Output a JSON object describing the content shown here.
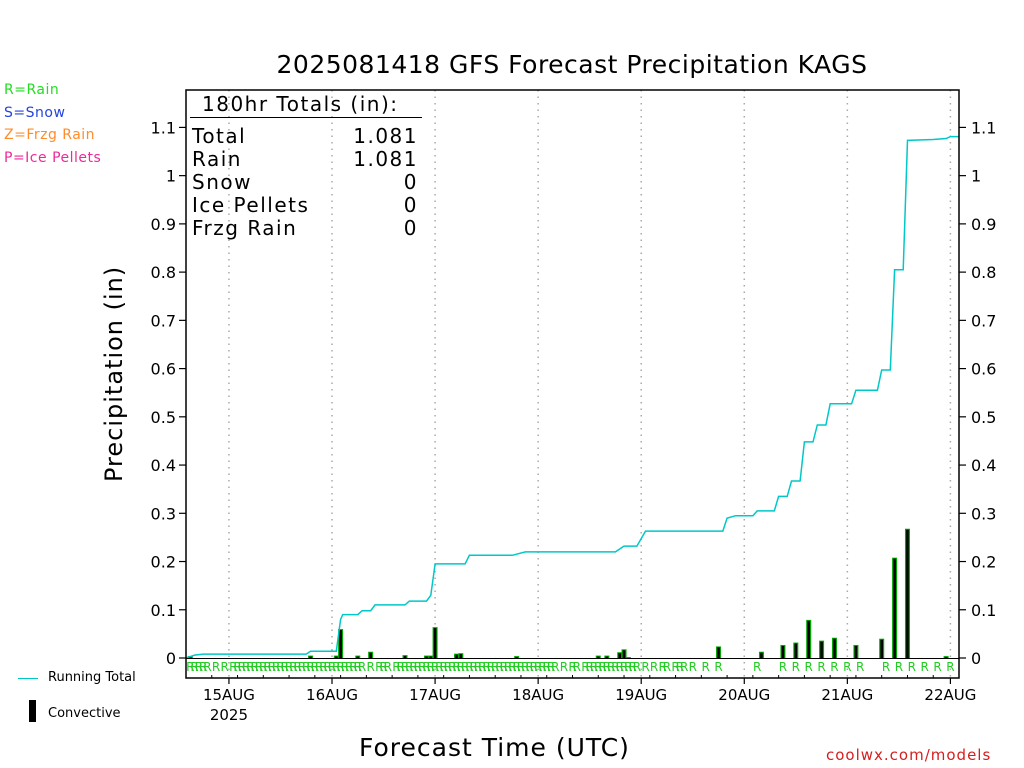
{
  "chart_data": {
    "type": "line",
    "title": "2025081418 GFS Forecast Precipitation KAGS",
    "xlabel": "Forecast Time (UTC)",
    "ylabel": "Precipitation (in)",
    "ylim": [
      0,
      1.19
    ],
    "yticks": [
      0,
      0.1,
      0.2,
      0.3,
      0.4,
      0.5,
      0.6,
      0.7,
      0.8,
      0.9,
      1,
      1.1
    ],
    "ytick_labels": [
      "0",
      "0.1",
      "0.2",
      "0.3",
      "0.4",
      "0.5",
      "0.6",
      "0.7",
      "0.8",
      "0.9",
      "1",
      "1.1"
    ],
    "xlim_hours": [
      -4,
      176
    ],
    "xticks": [
      {
        "hour": 6,
        "label": "15AUG",
        "sub": "2025"
      },
      {
        "hour": 30,
        "label": "16AUG"
      },
      {
        "hour": 54,
        "label": "17AUG"
      },
      {
        "hour": 78,
        "label": "18AUG"
      },
      {
        "hour": 102,
        "label": "19AUG"
      },
      {
        "hour": 126,
        "label": "20AUG"
      },
      {
        "hour": 150,
        "label": "21AUG"
      },
      {
        "hour": 174,
        "label": "22AUG"
      }
    ],
    "grid": "vertical dotted at 00Z",
    "legend": "left margin",
    "totals": {
      "heading": "180hr Totals (in):",
      "rows": [
        {
          "label": "Total",
          "value": "1.081"
        },
        {
          "label": "Rain",
          "value": "1.081"
        },
        {
          "label": "Snow",
          "value": "0"
        },
        {
          "label": "Ice Pellets",
          "value": "0"
        },
        {
          "label": "Frzg Rain",
          "value": "0"
        }
      ]
    },
    "series": [
      {
        "name": "Running Total",
        "color": "#00c8c8",
        "points": [
          [
            -4,
            0.0
          ],
          [
            -3,
            0.003
          ],
          [
            -2,
            0.006
          ],
          [
            0,
            0.008
          ],
          [
            24,
            0.008
          ],
          [
            25,
            0.014
          ],
          [
            31,
            0.014
          ],
          [
            32,
            0.08
          ],
          [
            32.5,
            0.09
          ],
          [
            36,
            0.09
          ],
          [
            37,
            0.098
          ],
          [
            39,
            0.098
          ],
          [
            40,
            0.11
          ],
          [
            47,
            0.11
          ],
          [
            48,
            0.118
          ],
          [
            52,
            0.118
          ],
          [
            53,
            0.13
          ],
          [
            54,
            0.195
          ],
          [
            61,
            0.195
          ],
          [
            62,
            0.213
          ],
          [
            72,
            0.213
          ],
          [
            75,
            0.22
          ],
          [
            96,
            0.22
          ],
          [
            98,
            0.232
          ],
          [
            101,
            0.232
          ],
          [
            103,
            0.263
          ],
          [
            121,
            0.263
          ],
          [
            122,
            0.29
          ],
          [
            124,
            0.295
          ],
          [
            128,
            0.295
          ],
          [
            129,
            0.305
          ],
          [
            133,
            0.305
          ],
          [
            134,
            0.335
          ],
          [
            136,
            0.335
          ],
          [
            137,
            0.367
          ],
          [
            139,
            0.367
          ],
          [
            140,
            0.448
          ],
          [
            142,
            0.448
          ],
          [
            143,
            0.483
          ],
          [
            145,
            0.483
          ],
          [
            146,
            0.527
          ],
          [
            151,
            0.527
          ],
          [
            152,
            0.555
          ],
          [
            157,
            0.555
          ],
          [
            158,
            0.597
          ],
          [
            160,
            0.597
          ],
          [
            161,
            0.805
          ],
          [
            163,
            0.805
          ],
          [
            164,
            1.073
          ],
          [
            170,
            1.075
          ],
          [
            173,
            1.077
          ],
          [
            174,
            1.081
          ],
          [
            176,
            1.081
          ]
        ]
      },
      {
        "name": "Convective",
        "color": "#000000",
        "bar_hours": [
          -3,
          25,
          31,
          32,
          36,
          39,
          47,
          52,
          53,
          54,
          59,
          60,
          73,
          92,
          94,
          97,
          98,
          99,
          120,
          130,
          135,
          138,
          141,
          144,
          147,
          152,
          158,
          161,
          164,
          173
        ],
        "bar_values": [
          0.004,
          0.005,
          0.005,
          0.06,
          0.005,
          0.013,
          0.006,
          0.005,
          0.005,
          0.064,
          0.009,
          0.01,
          0.004,
          0.005,
          0.005,
          0.012,
          0.018,
          0.002,
          0.024,
          0.013,
          0.027,
          0.032,
          0.079,
          0.036,
          0.042,
          0.027,
          0.04,
          0.208,
          0.268,
          0.004
        ]
      }
    ],
    "precip_type_markers": {
      "symbol": "R",
      "hours": [
        -3,
        -2,
        -1,
        0,
        1,
        3,
        5,
        7,
        8,
        9,
        10,
        11,
        12,
        13,
        14,
        15,
        16,
        17,
        18,
        19,
        20,
        21,
        22,
        23,
        24,
        25,
        26,
        27,
        28,
        29,
        30,
        31,
        32,
        33,
        34,
        35,
        36,
        37,
        39,
        41,
        42,
        43,
        45,
        46,
        47,
        48,
        49,
        50,
        51,
        52,
        53,
        54,
        55,
        56,
        57,
        58,
        59,
        60,
        61,
        62,
        63,
        64,
        65,
        66,
        67,
        68,
        69,
        70,
        71,
        72,
        73,
        74,
        75,
        76,
        77,
        78,
        79,
        80,
        81,
        82,
        84,
        86,
        87,
        89,
        90,
        91,
        92,
        93,
        94,
        95,
        96,
        97,
        98,
        99,
        100,
        101,
        103,
        105,
        107,
        108,
        110,
        111,
        112,
        114,
        117,
        120,
        129,
        135,
        138,
        141,
        144,
        147,
        150,
        153,
        159,
        162,
        165,
        168,
        171,
        174
      ]
    }
  },
  "legend": {
    "ptypes": [
      {
        "text": "R=Rain",
        "color": "#22dd22"
      },
      {
        "text": "S=Snow",
        "color": "#2244dd"
      },
      {
        "text": "Z=Frzg Rain",
        "color": "#ff8c2a"
      },
      {
        "text": "P=Ice Pellets",
        "color": "#ee2a9a"
      }
    ],
    "running_total": "Running Total",
    "convective": "Convective"
  },
  "credit": "coolwx.com/models"
}
